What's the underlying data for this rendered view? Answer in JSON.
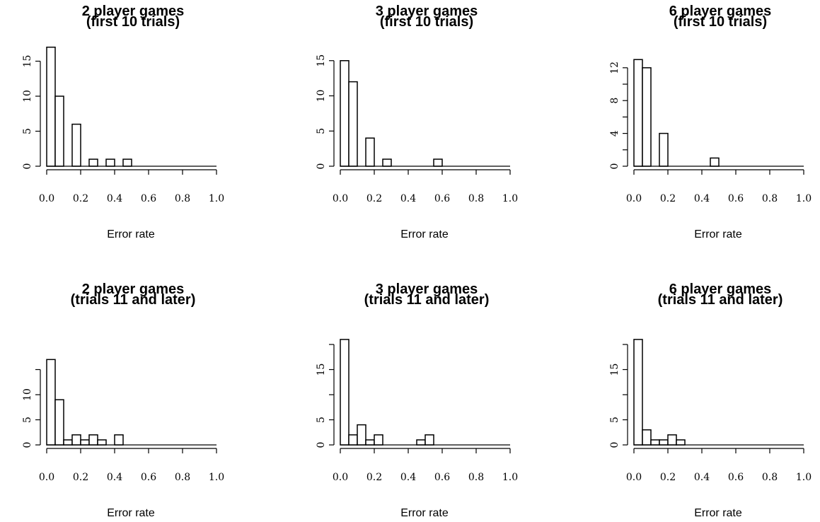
{
  "chart_data": [
    {
      "type": "bar",
      "title": "2 player games",
      "subtitle": "(first 10 trials)",
      "xlabel": "Error rate",
      "ylabel": "",
      "xlim": [
        0,
        1
      ],
      "ylim": [
        0,
        17
      ],
      "grid": false,
      "x_ticks": [
        "0.0",
        "0.2",
        "0.4",
        "0.6",
        "0.8",
        "1.0"
      ],
      "y_ticks": [
        "0",
        "5",
        "10",
        "15"
      ],
      "y_tick_values": [
        0,
        5,
        10,
        15
      ],
      "bin_width": 0.05,
      "bins": [
        0,
        0.05,
        0.1,
        0.15,
        0.2,
        0.25,
        0.3,
        0.35,
        0.4,
        0.45,
        0.5,
        0.55,
        0.6,
        0.65,
        0.7,
        0.75,
        0.8,
        0.85,
        0.9,
        0.95
      ],
      "values": [
        17,
        10,
        0,
        6,
        0,
        1,
        0,
        1,
        0,
        1,
        0,
        0,
        0,
        0,
        0,
        0,
        0,
        0,
        0,
        0
      ]
    },
    {
      "type": "bar",
      "title": "3 player games",
      "subtitle": "(first 10 trials)",
      "xlabel": "Error rate",
      "ylabel": "",
      "xlim": [
        0,
        1
      ],
      "ylim": [
        0,
        15
      ],
      "grid": false,
      "x_ticks": [
        "0.0",
        "0.2",
        "0.4",
        "0.6",
        "0.8",
        "1.0"
      ],
      "y_ticks": [
        "0",
        "5",
        "10",
        "15"
      ],
      "y_tick_values": [
        0,
        5,
        10,
        15
      ],
      "bin_width": 0.05,
      "bins": [
        0,
        0.05,
        0.1,
        0.15,
        0.2,
        0.25,
        0.3,
        0.35,
        0.4,
        0.45,
        0.5,
        0.55,
        0.6,
        0.65,
        0.7,
        0.75,
        0.8,
        0.85,
        0.9,
        0.95
      ],
      "values": [
        15,
        12,
        0,
        4,
        0,
        1,
        0,
        0,
        0,
        0,
        0,
        1,
        0,
        0,
        0,
        0,
        0,
        0,
        0,
        0
      ]
    },
    {
      "type": "bar",
      "title": "6 player games",
      "subtitle": "(first 10 trials)",
      "xlabel": "Error rate",
      "ylabel": "",
      "xlim": [
        0,
        1
      ],
      "ylim": [
        0,
        13
      ],
      "grid": false,
      "x_ticks": [
        "0.0",
        "0.2",
        "0.4",
        "0.6",
        "0.8",
        "1.0"
      ],
      "y_ticks": [
        "0",
        "4",
        "8",
        "12"
      ],
      "y_tick_values": [
        0,
        4,
        8,
        12
      ],
      "y_minor_ticks": [
        2,
        6,
        10
      ],
      "bin_width": 0.05,
      "bins": [
        0,
        0.05,
        0.1,
        0.15,
        0.2,
        0.25,
        0.3,
        0.35,
        0.4,
        0.45,
        0.5,
        0.55,
        0.6,
        0.65,
        0.7,
        0.75,
        0.8,
        0.85,
        0.9,
        0.95
      ],
      "values": [
        13,
        12,
        0,
        4,
        0,
        0,
        0,
        0,
        0,
        1,
        0,
        0,
        0,
        0,
        0,
        0,
        0,
        0,
        0,
        0
      ]
    },
    {
      "type": "bar",
      "title": "2 player games",
      "subtitle": "(trials 11 and later)",
      "xlabel": "Error rate",
      "ylabel": "",
      "xlim": [
        0,
        1
      ],
      "ylim": [
        0,
        17
      ],
      "grid": false,
      "x_ticks": [
        "0.0",
        "0.2",
        "0.4",
        "0.6",
        "0.8",
        "1.0"
      ],
      "y_ticks": [
        "0",
        "5",
        "10"
      ],
      "y_tick_values": [
        0,
        5,
        10
      ],
      "y_minor_ticks": [
        15
      ],
      "bin_width": 0.05,
      "bins": [
        0,
        0.05,
        0.1,
        0.15,
        0.2,
        0.25,
        0.3,
        0.35,
        0.4,
        0.45,
        0.5,
        0.55,
        0.6,
        0.65,
        0.7,
        0.75,
        0.8,
        0.85,
        0.9,
        0.95
      ],
      "values": [
        17,
        9,
        1,
        2,
        1,
        2,
        1,
        0,
        2,
        0,
        0,
        0,
        0,
        0,
        0,
        0,
        0,
        0,
        0,
        0
      ]
    },
    {
      "type": "bar",
      "title": "3 player games",
      "subtitle": "(trials 11 and later)",
      "xlabel": "Error rate",
      "ylabel": "",
      "xlim": [
        0,
        1
      ],
      "ylim": [
        0,
        21
      ],
      "grid": false,
      "x_ticks": [
        "0.0",
        "0.2",
        "0.4",
        "0.6",
        "0.8",
        "1.0"
      ],
      "y_ticks": [
        "0",
        "5",
        "15"
      ],
      "y_tick_values": [
        0,
        5,
        15
      ],
      "y_minor_ticks": [
        10,
        20
      ],
      "bin_width": 0.05,
      "bins": [
        0,
        0.05,
        0.1,
        0.15,
        0.2,
        0.25,
        0.3,
        0.35,
        0.4,
        0.45,
        0.5,
        0.55,
        0.6,
        0.65,
        0.7,
        0.75,
        0.8,
        0.85,
        0.9,
        0.95
      ],
      "values": [
        21,
        2,
        4,
        1,
        2,
        0,
        0,
        0,
        0,
        1,
        2,
        0,
        0,
        0,
        0,
        0,
        0,
        0,
        0,
        0
      ]
    },
    {
      "type": "bar",
      "title": "6 player games",
      "subtitle": "(trials 11 and later)",
      "xlabel": "Error rate",
      "ylabel": "",
      "xlim": [
        0,
        1
      ],
      "ylim": [
        0,
        21
      ],
      "grid": false,
      "x_ticks": [
        "0.0",
        "0.2",
        "0.4",
        "0.6",
        "0.8",
        "1.0"
      ],
      "y_ticks": [
        "0",
        "5",
        "15"
      ],
      "y_tick_values": [
        0,
        5,
        15
      ],
      "y_minor_ticks": [
        10,
        20
      ],
      "bin_width": 0.05,
      "bins": [
        0,
        0.05,
        0.1,
        0.15,
        0.2,
        0.25,
        0.3,
        0.35,
        0.4,
        0.45,
        0.5,
        0.55,
        0.6,
        0.65,
        0.7,
        0.75,
        0.8,
        0.85,
        0.9,
        0.95
      ],
      "values": [
        21,
        3,
        1,
        1,
        2,
        1,
        0,
        0,
        0,
        0,
        0,
        0,
        0,
        0,
        0,
        0,
        0,
        0,
        0,
        0
      ]
    }
  ]
}
